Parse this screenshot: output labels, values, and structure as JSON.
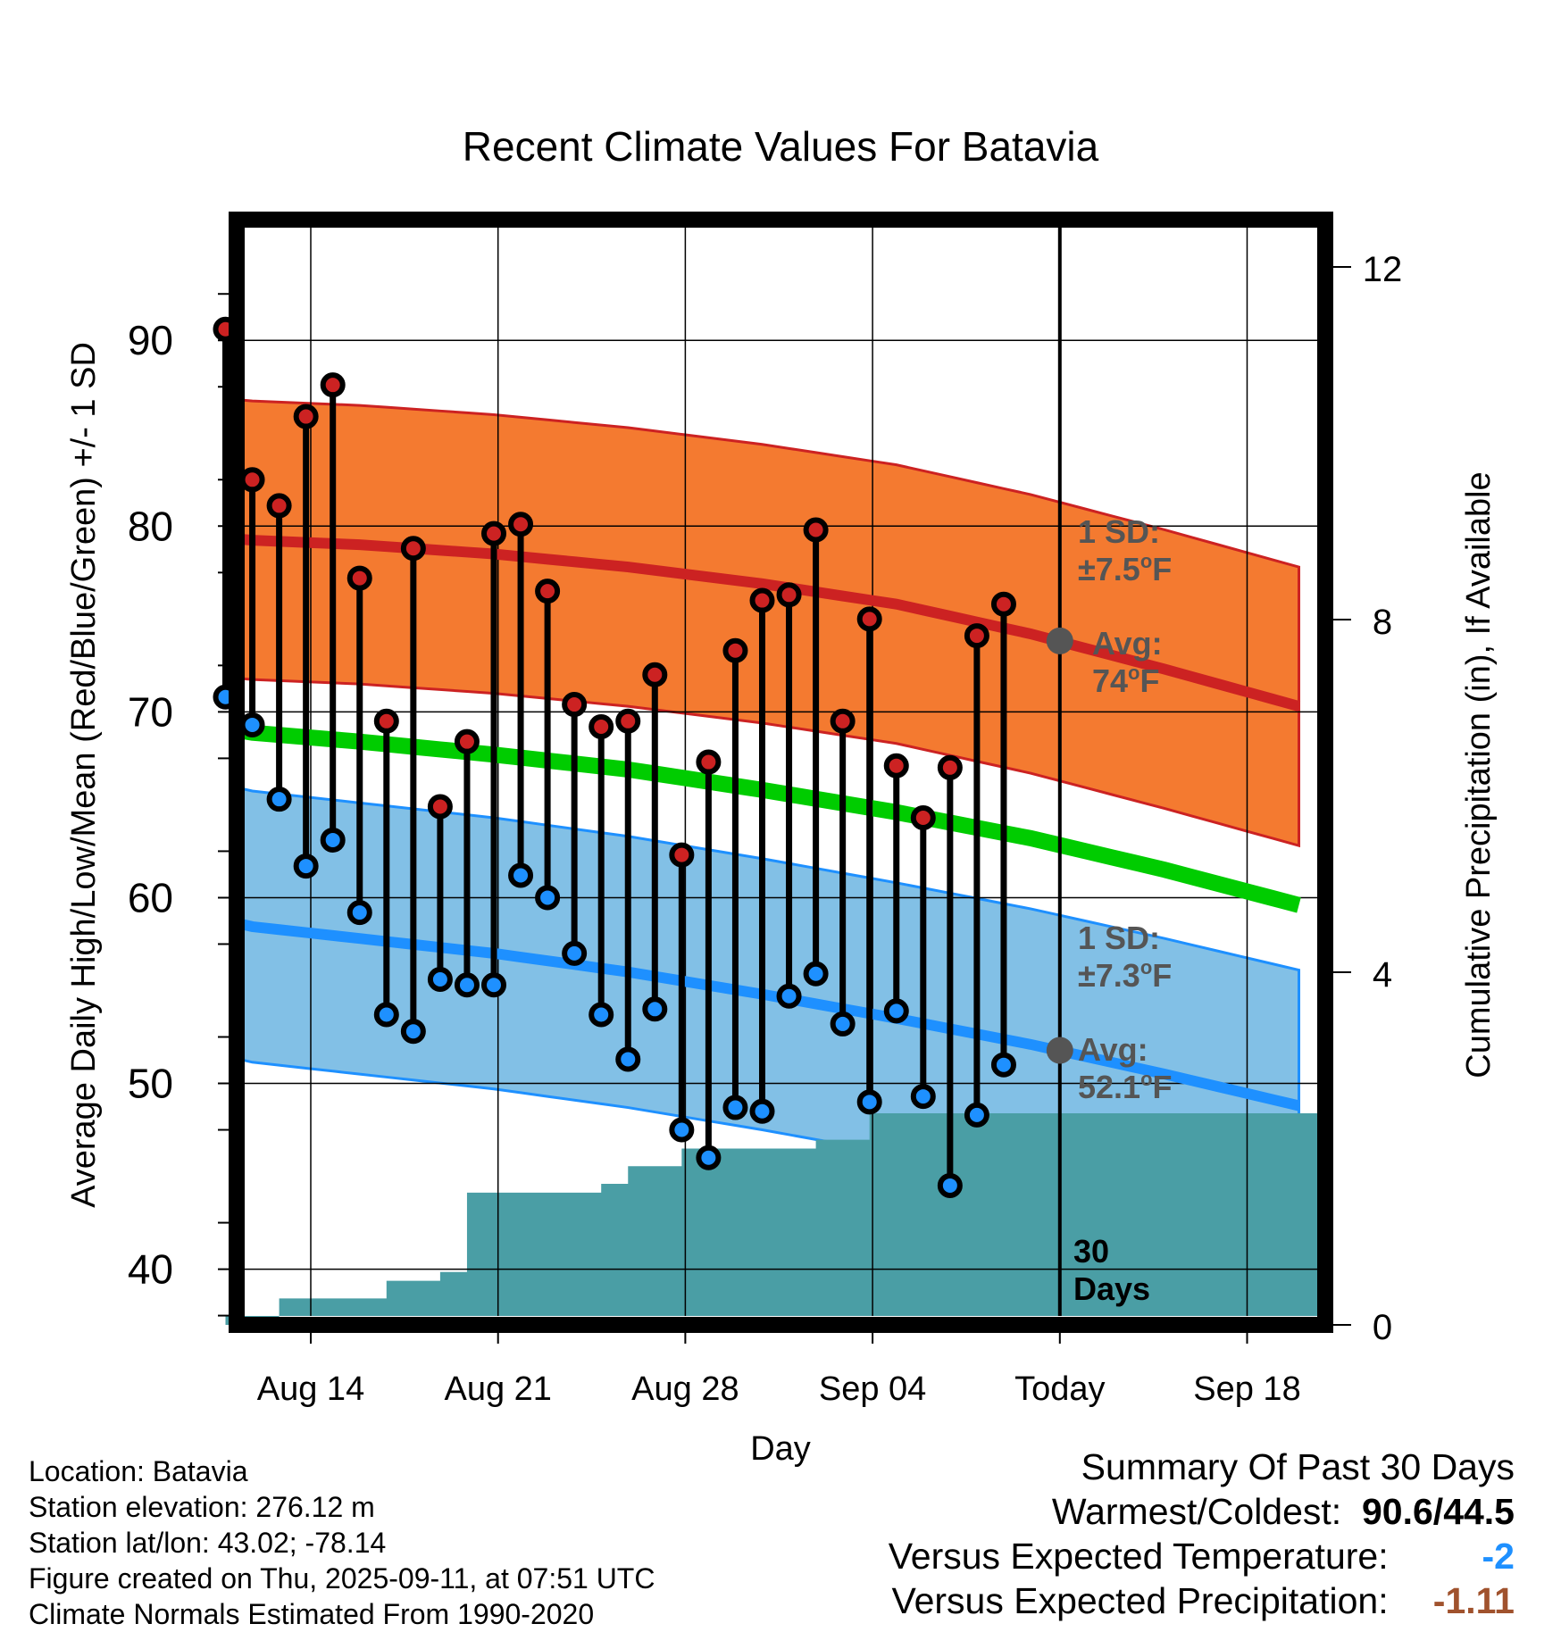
{
  "chart_data": {
    "type": "line",
    "title": "Recent Climate Values For Batavia",
    "xlabel": "Day",
    "ylabel": "Average Daily High/Low/Mean (Red/Blue/Green) +/- 1 SD",
    "ylabel_right": "Cumulative Precipitation (in), If Available",
    "x_tick_labels": [
      "Aug 14",
      "Aug 21",
      "Aug 28",
      "Sep 04",
      "Today",
      "Sep 18"
    ],
    "y_ticks": [
      40,
      50,
      60,
      70,
      80,
      90
    ],
    "ylim": [
      37,
      96.5
    ],
    "y2_ticks": [
      0,
      4,
      8,
      12
    ],
    "y2lim": [
      0,
      24
    ],
    "x_range": [
      "Aug 11",
      "Sep 20"
    ],
    "grid": true,
    "colors": {
      "high": "#cc2222",
      "low": "#1e90ff",
      "mean": "#00cc00",
      "high_band": "#f47a30",
      "low_band": "#82c0e6",
      "precip": "#4a9ea5"
    },
    "normals": {
      "x": [
        "Aug 11",
        "Aug 16",
        "Aug 21",
        "Aug 26",
        "Aug 31",
        "Sep 05",
        "Sep 10",
        "Sep 15",
        "Sep 20"
      ],
      "avg_high": [
        79.3,
        79.0,
        78.5,
        77.8,
        76.9,
        75.8,
        74.2,
        72.3,
        70.3
      ],
      "avg_low": [
        58.6,
        57.8,
        57.0,
        56.0,
        54.8,
        53.5,
        52.1,
        50.5,
        48.8
      ],
      "avg_mean": [
        69.0,
        68.4,
        67.7,
        66.9,
        65.8,
        64.6,
        63.2,
        61.5,
        59.6
      ],
      "high_sd": 7.5,
      "low_sd": 7.3
    },
    "series": [
      {
        "name": "High",
        "x": [
          "Aug 11",
          "Aug 12",
          "Aug 13",
          "Aug 14",
          "Aug 15",
          "Aug 16",
          "Aug 17",
          "Aug 18",
          "Aug 19",
          "Aug 20",
          "Aug 21",
          "Aug 22",
          "Aug 23",
          "Aug 24",
          "Aug 25",
          "Aug 26",
          "Aug 27",
          "Aug 28",
          "Aug 29",
          "Aug 30",
          "Aug 31",
          "Sep 01",
          "Sep 02",
          "Sep 03",
          "Sep 04",
          "Sep 05",
          "Sep 06",
          "Sep 07",
          "Sep 08",
          "Sep 09",
          "Sep 10"
        ],
        "values": [
          90.6,
          82.5,
          81.1,
          85.9,
          87.6,
          77.2,
          69.5,
          78.8,
          64.9,
          68.4,
          79.6,
          80.1,
          76.5,
          70.4,
          69.2,
          69.5,
          72.0,
          62.3,
          67.3,
          73.3,
          76.0,
          76.3,
          79.8,
          69.5,
          75.0,
          67.1,
          64.3,
          67.0,
          74.1,
          75.8,
          null
        ]
      },
      {
        "name": "Low",
        "x": [
          "Aug 11",
          "Aug 12",
          "Aug 13",
          "Aug 14",
          "Aug 15",
          "Aug 16",
          "Aug 17",
          "Aug 18",
          "Aug 19",
          "Aug 20",
          "Aug 21",
          "Aug 22",
          "Aug 23",
          "Aug 24",
          "Aug 25",
          "Aug 26",
          "Aug 27",
          "Aug 28",
          "Aug 29",
          "Aug 30",
          "Aug 31",
          "Sep 01",
          "Sep 02",
          "Sep 03",
          "Sep 04",
          "Sep 05",
          "Sep 06",
          "Sep 07",
          "Sep 08",
          "Sep 09",
          "Sep 10"
        ],
        "values": [
          70.8,
          69.3,
          65.3,
          61.7,
          63.1,
          59.2,
          53.7,
          52.8,
          55.6,
          55.3,
          55.3,
          61.2,
          60.0,
          57.0,
          53.7,
          51.3,
          54.0,
          47.5,
          46.0,
          48.7,
          48.5,
          54.7,
          55.9,
          53.2,
          49.0,
          53.9,
          49.3,
          44.5,
          48.3,
          51.0,
          null
        ]
      }
    ],
    "precipitation": {
      "x": [
        "Aug 11",
        "Aug 12",
        "Aug 13",
        "Aug 14",
        "Aug 15",
        "Aug 16",
        "Aug 17",
        "Aug 18",
        "Aug 19",
        "Aug 20",
        "Aug 21",
        "Aug 22",
        "Aug 23",
        "Aug 24",
        "Aug 25",
        "Aug 26",
        "Aug 27",
        "Aug 28",
        "Aug 29",
        "Aug 30",
        "Aug 31",
        "Sep 01",
        "Sep 02",
        "Sep 03",
        "Sep 04",
        "Sep 05",
        "Sep 06",
        "Sep 07",
        "Sep 08",
        "Sep 09",
        "Sep 10"
      ],
      "values": [
        0.0,
        0.0,
        0.3,
        0.3,
        0.3,
        0.3,
        0.5,
        0.5,
        0.6,
        1.5,
        1.5,
        1.5,
        1.5,
        1.5,
        1.6,
        1.8,
        1.8,
        2.0,
        2.0,
        2.0,
        2.0,
        2.0,
        2.1,
        2.1,
        2.4,
        2.4,
        2.4,
        2.4,
        2.4,
        2.4,
        2.4
      ]
    },
    "annotations": {
      "high_sd_line1": "1 SD:",
      "high_sd_line2": "±7.5",
      "high_avg_line1": "Avg:",
      "high_avg_line2": "74",
      "low_sd_line1": "1 SD:",
      "low_sd_line2": "±7.3",
      "low_avg_line1": "Avg:",
      "low_avg_line2": "52.1",
      "degree_symbol": "o",
      "unit": "F",
      "period_line1": "30",
      "period_line2": "Days"
    }
  },
  "info": {
    "location": "Location: Batavia",
    "elevation": "Station elevation: 276.12 m",
    "latlon": "Station lat/lon: 43.02; -78.14",
    "created": "Figure created on Thu, 2025-09-11, at 07:51 UTC",
    "normals": "Climate Normals Estimated From 1990-2020"
  },
  "summary": {
    "title": "Summary Of Past 30 Days",
    "warmest_label": "Warmest/Coldest:",
    "warmest_value": "90.6/44.5",
    "temp_label": "Versus Expected Temperature:",
    "temp_value": "-2",
    "temp_color": "#1e90ff",
    "precip_label": "Versus Expected Precipitation:",
    "precip_value": "-1.11",
    "precip_color": "#a0522d"
  }
}
